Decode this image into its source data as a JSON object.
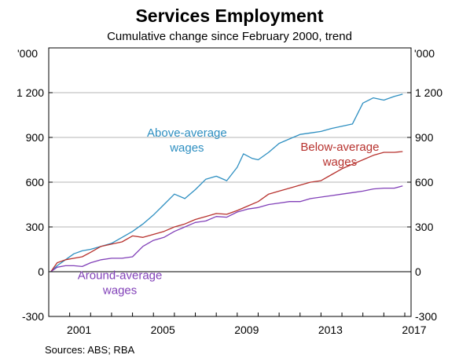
{
  "chart_data": {
    "type": "line",
    "title": "Services Employment",
    "subtitle": "Cumulative change since February 2000, trend",
    "unit_label": "'000",
    "ylim": [
      -300,
      1500
    ],
    "yticks": [
      -300,
      0,
      300,
      600,
      900,
      1200
    ],
    "ytick_labels": [
      "-300",
      "0",
      "300",
      "600",
      "900",
      "1 200"
    ],
    "xlim": [
      2000.0,
      2017.3
    ],
    "xticks": [
      2001,
      2005,
      2009,
      2013,
      2017
    ],
    "xtick_labels": [
      "2001",
      "2005",
      "2009",
      "2013",
      "2017"
    ],
    "grid": true,
    "source": "Sources:   ABS; RBA",
    "series": [
      {
        "name": "Above-average wages",
        "label_lines": [
          "Above-average",
          "wages"
        ],
        "color": "#2e8fc1",
        "points": [
          [
            2000.1,
            0
          ],
          [
            2000.4,
            40
          ],
          [
            2000.8,
            80
          ],
          [
            2001.2,
            120
          ],
          [
            2001.6,
            140
          ],
          [
            2002.0,
            150
          ],
          [
            2002.5,
            170
          ],
          [
            2003.0,
            190
          ],
          [
            2003.5,
            230
          ],
          [
            2004.0,
            270
          ],
          [
            2004.5,
            320
          ],
          [
            2005.0,
            380
          ],
          [
            2005.5,
            450
          ],
          [
            2006.0,
            520
          ],
          [
            2006.5,
            490
          ],
          [
            2007.0,
            550
          ],
          [
            2007.5,
            620
          ],
          [
            2008.0,
            640
          ],
          [
            2008.5,
            610
          ],
          [
            2009.0,
            700
          ],
          [
            2009.3,
            790
          ],
          [
            2009.7,
            760
          ],
          [
            2010.0,
            750
          ],
          [
            2010.5,
            800
          ],
          [
            2011.0,
            860
          ],
          [
            2011.5,
            890
          ],
          [
            2012.0,
            920
          ],
          [
            2012.5,
            930
          ],
          [
            2013.0,
            940
          ],
          [
            2013.5,
            960
          ],
          [
            2014.0,
            975
          ],
          [
            2014.5,
            990
          ],
          [
            2015.0,
            1130
          ],
          [
            2015.5,
            1165
          ],
          [
            2016.0,
            1150
          ],
          [
            2016.5,
            1175
          ],
          [
            2016.9,
            1190
          ]
        ]
      },
      {
        "name": "Below-average wages",
        "label_lines": [
          "Below-average",
          "wages"
        ],
        "color": "#b7322e",
        "points": [
          [
            2000.1,
            0
          ],
          [
            2000.4,
            60
          ],
          [
            2000.8,
            80
          ],
          [
            2001.2,
            90
          ],
          [
            2001.6,
            100
          ],
          [
            2002.0,
            130
          ],
          [
            2002.5,
            170
          ],
          [
            2003.0,
            185
          ],
          [
            2003.5,
            200
          ],
          [
            2004.0,
            240
          ],
          [
            2004.5,
            230
          ],
          [
            2005.0,
            250
          ],
          [
            2005.5,
            270
          ],
          [
            2006.0,
            300
          ],
          [
            2006.5,
            320
          ],
          [
            2007.0,
            350
          ],
          [
            2007.5,
            370
          ],
          [
            2008.0,
            390
          ],
          [
            2008.5,
            385
          ],
          [
            2009.0,
            410
          ],
          [
            2009.5,
            440
          ],
          [
            2010.0,
            470
          ],
          [
            2010.5,
            520
          ],
          [
            2011.0,
            540
          ],
          [
            2011.5,
            560
          ],
          [
            2012.0,
            580
          ],
          [
            2012.5,
            600
          ],
          [
            2013.0,
            610
          ],
          [
            2013.5,
            650
          ],
          [
            2014.0,
            690
          ],
          [
            2014.5,
            720
          ],
          [
            2015.0,
            750
          ],
          [
            2015.5,
            780
          ],
          [
            2016.0,
            800
          ],
          [
            2016.5,
            800
          ],
          [
            2016.9,
            805
          ]
        ]
      },
      {
        "name": "Around-average wages",
        "label_lines": [
          "Around-average",
          "wages"
        ],
        "color": "#8140b8",
        "points": [
          [
            2000.1,
            0
          ],
          [
            2000.4,
            30
          ],
          [
            2000.8,
            40
          ],
          [
            2001.2,
            40
          ],
          [
            2001.6,
            35
          ],
          [
            2002.0,
            60
          ],
          [
            2002.5,
            80
          ],
          [
            2003.0,
            90
          ],
          [
            2003.5,
            90
          ],
          [
            2004.0,
            100
          ],
          [
            2004.5,
            170
          ],
          [
            2005.0,
            210
          ],
          [
            2005.5,
            230
          ],
          [
            2006.0,
            270
          ],
          [
            2006.5,
            300
          ],
          [
            2007.0,
            330
          ],
          [
            2007.5,
            340
          ],
          [
            2008.0,
            370
          ],
          [
            2008.5,
            365
          ],
          [
            2009.0,
            400
          ],
          [
            2009.5,
            420
          ],
          [
            2010.0,
            430
          ],
          [
            2010.5,
            450
          ],
          [
            2011.0,
            460
          ],
          [
            2011.5,
            470
          ],
          [
            2012.0,
            470
          ],
          [
            2012.5,
            490
          ],
          [
            2013.0,
            500
          ],
          [
            2013.5,
            510
          ],
          [
            2014.0,
            520
          ],
          [
            2014.5,
            530
          ],
          [
            2015.0,
            540
          ],
          [
            2015.5,
            555
          ],
          [
            2016.0,
            560
          ],
          [
            2016.5,
            560
          ],
          [
            2016.9,
            575
          ]
        ]
      }
    ]
  }
}
